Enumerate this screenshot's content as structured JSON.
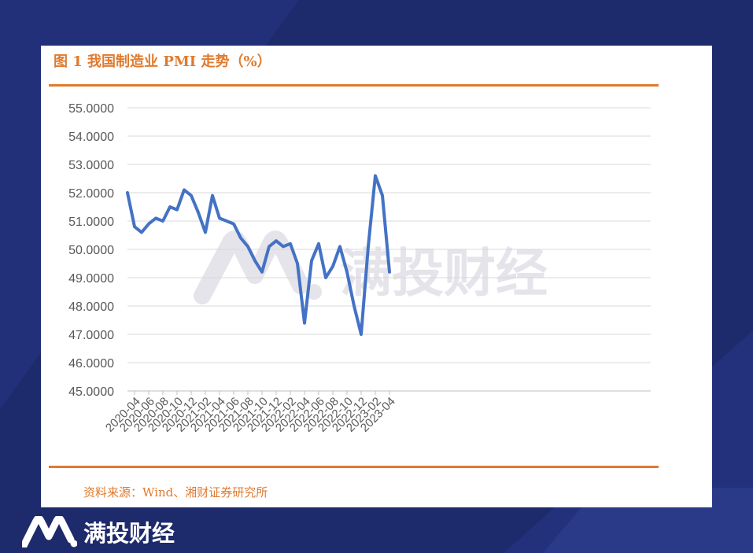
{
  "figure": {
    "title": "图 1 我国制造业 PMI 走势（%）",
    "source": "资料来源：Wind、湘财证券研究所"
  },
  "watermark": {
    "text": "满投财经"
  },
  "footer": {
    "brand_name": "满投财经"
  },
  "colors": {
    "background": "#1d2a6b",
    "accent": "#e07a2e",
    "line": "#4472c4",
    "grid": "#d9d9d9",
    "watermark": "#e4e4ea"
  },
  "chart_data": {
    "type": "line",
    "x": [
      "2020-03",
      "2020-04",
      "2020-05",
      "2020-06",
      "2020-07",
      "2020-08",
      "2020-09",
      "2020-10",
      "2020-11",
      "2020-12",
      "2021-01",
      "2021-02",
      "2021-03",
      "2021-04",
      "2021-05",
      "2021-06",
      "2021-07",
      "2021-08",
      "2021-09",
      "2021-10",
      "2021-11",
      "2021-12",
      "2022-01",
      "2022-02",
      "2022-03",
      "2022-04",
      "2022-05",
      "2022-06",
      "2022-07",
      "2022-08",
      "2022-09",
      "2022-10",
      "2022-11",
      "2022-12",
      "2023-01",
      "2023-02",
      "2023-03",
      "2023-04"
    ],
    "x_tick_labels": [
      "2020-04",
      "2020-06",
      "2020-08",
      "2020-10",
      "2020-12",
      "2021-02",
      "2021-04",
      "2021-06",
      "2021-08",
      "2021-10",
      "2021-12",
      "2022-02",
      "2022-04",
      "2022-06",
      "2022-08",
      "2022-10",
      "2022-12",
      "2023-02",
      "2023-04"
    ],
    "series": [
      {
        "values": [
          52.0,
          50.8,
          50.6,
          50.9,
          51.1,
          51.0,
          51.5,
          51.4,
          52.1,
          51.9,
          51.3,
          50.6,
          51.9,
          51.1,
          51.0,
          50.9,
          50.4,
          50.1,
          49.6,
          49.2,
          50.1,
          50.3,
          50.1,
          50.2,
          49.5,
          47.4,
          49.6,
          50.2,
          49.0,
          49.4,
          50.1,
          49.2,
          48.0,
          47.0,
          50.1,
          52.6,
          51.9,
          49.2
        ]
      }
    ],
    "ylim": [
      45,
      55
    ],
    "y_ticks": [
      "55.0000",
      "54.0000",
      "53.0000",
      "52.0000",
      "51.0000",
      "50.0000",
      "49.0000",
      "48.0000",
      "47.0000",
      "46.0000",
      "45.0000"
    ],
    "grid": true,
    "legend": "none"
  }
}
